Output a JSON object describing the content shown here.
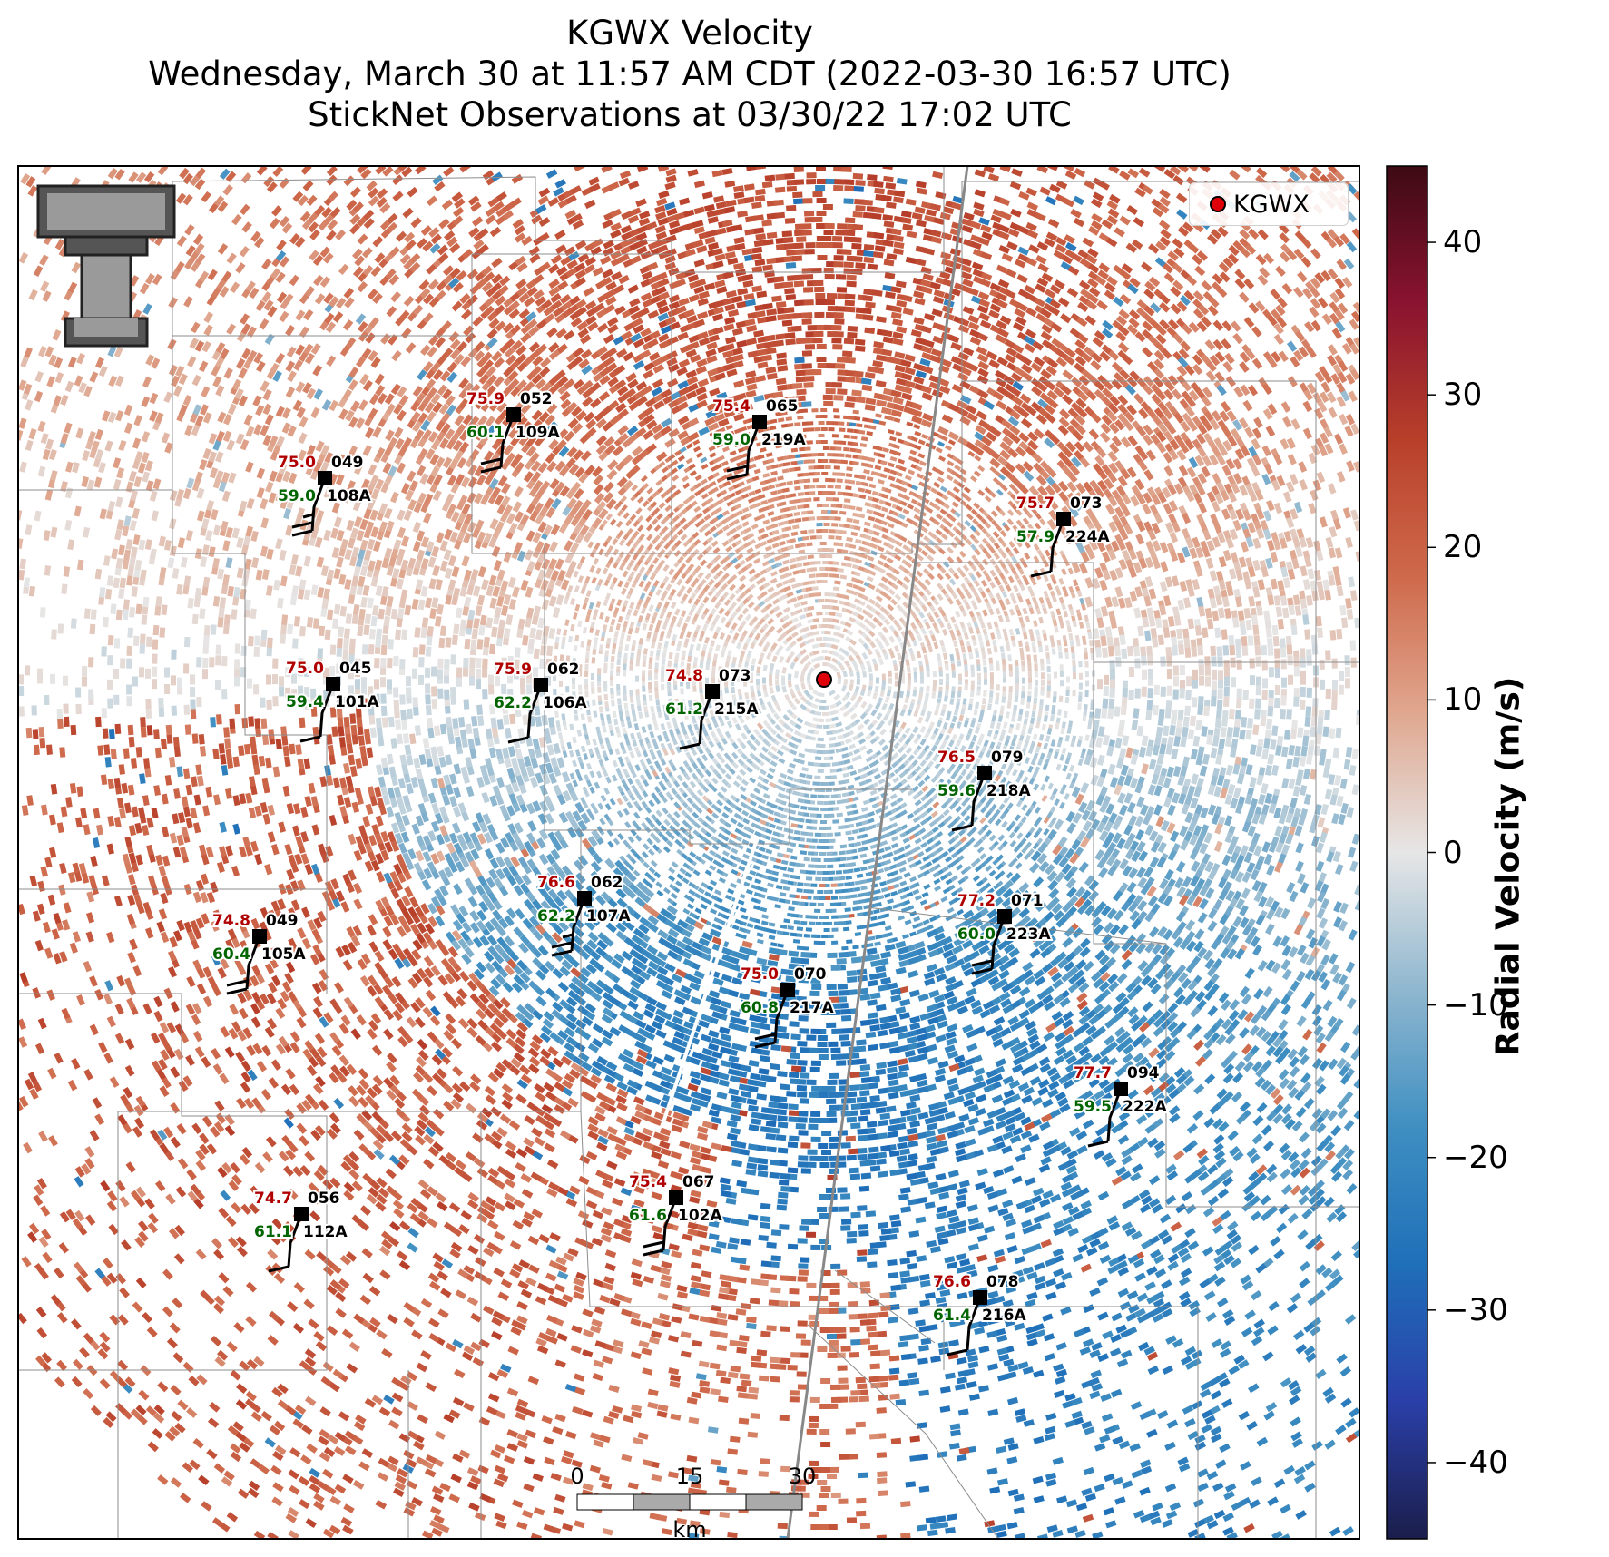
{
  "header": {
    "line1": "KGWX Velocity",
    "line2": "Wednesday, March 30 at 11:57 AM CDT (2022-03-30 16:57 UTC)",
    "line3": "StickNet Observations at 03/30/22 17:02 UTC"
  },
  "legend": {
    "radar_label": "KGWX",
    "marker_color": "#e0000a"
  },
  "colorbar": {
    "label": "Radial Velocity (m/s)",
    "range": [
      -45,
      45
    ],
    "ticks": [
      "40",
      "30",
      "20",
      "10",
      "0",
      "−10",
      "−20",
      "−30",
      "−40"
    ],
    "colors": [
      "#1b1e4b",
      "#2a3fa8",
      "#1f6fb9",
      "#3f8fc2",
      "#8fb7cf",
      "#e6e6e6",
      "#e0a890",
      "#cf6a4c",
      "#b8402a",
      "#8a1330",
      "#3d0a14"
    ]
  },
  "scale_bar": {
    "ticks": [
      "0",
      "15",
      "30"
    ],
    "unit": "km"
  },
  "logo": {
    "name": "texas-tech-double-t-logo",
    "letters": "TT"
  },
  "stations": [
    {
      "id": "108A",
      "temp": "75.0",
      "dew": "59.0",
      "dir": "049",
      "speed": 15
    },
    {
      "id": "109A",
      "temp": "75.9",
      "dew": "60.1",
      "dir": "052",
      "speed": 20
    },
    {
      "id": "219A",
      "temp": "75.4",
      "dew": "59.0",
      "dir": "065",
      "speed": 20
    },
    {
      "id": "224A",
      "temp": "75.7",
      "dew": "57.9",
      "dir": "073",
      "speed": 10
    },
    {
      "id": "101A",
      "temp": "75.0",
      "dew": "59.4",
      "dir": "045",
      "speed": 10
    },
    {
      "id": "106A",
      "temp": "75.9",
      "dew": "62.2",
      "dir": "062",
      "speed": 10
    },
    {
      "id": "215A",
      "temp": "74.8",
      "dew": "61.2",
      "dir": "073",
      "speed": 10
    },
    {
      "id": "218A",
      "temp": "76.5",
      "dew": "59.6",
      "dir": "079",
      "speed": 10
    },
    {
      "id": "107A",
      "temp": "76.6",
      "dew": "62.2",
      "dir": "062",
      "speed": 15
    },
    {
      "id": "105A",
      "temp": "74.8",
      "dew": "60.4",
      "dir": "049",
      "speed": 20
    },
    {
      "id": "223A",
      "temp": "77.2",
      "dew": "60.0",
      "dir": "071",
      "speed": 20
    },
    {
      "id": "217A",
      "temp": "75.0",
      "dew": "60.8",
      "dir": "070",
      "speed": 20
    },
    {
      "id": "222A",
      "temp": "77.7",
      "dew": "59.5",
      "dir": "094",
      "speed": 10
    },
    {
      "id": "112A",
      "temp": "74.7",
      "dew": "61.1",
      "dir": "056",
      "speed": 10
    },
    {
      "id": "102A",
      "temp": "75.4",
      "dew": "61.6",
      "dir": "067",
      "speed": 20
    },
    {
      "id": "216A",
      "temp": "76.6",
      "dew": "61.4",
      "dir": "078",
      "speed": 10
    }
  ]
}
